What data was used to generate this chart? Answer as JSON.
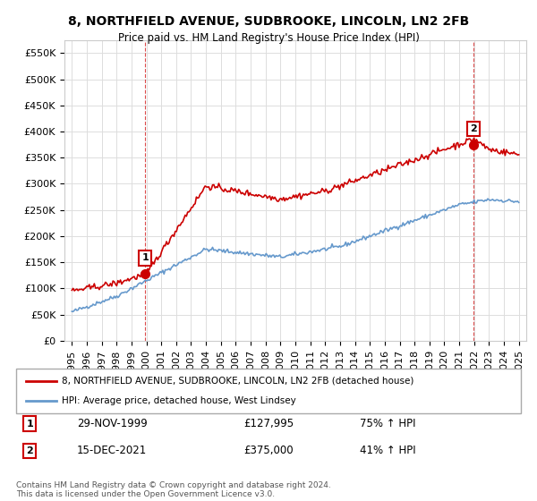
{
  "title": "8, NORTHFIELD AVENUE, SUDBROOKE, LINCOLN, LN2 2FB",
  "subtitle": "Price paid vs. HM Land Registry's House Price Index (HPI)",
  "legend_line1": "8, NORTHFIELD AVENUE, SUDBROOKE, LINCOLN, LN2 2FB (detached house)",
  "legend_line2": "HPI: Average price, detached house, West Lindsey",
  "annotation1": {
    "label": "1",
    "date": "29-NOV-1999",
    "price": "£127,995",
    "change": "75% ↑ HPI"
  },
  "annotation2": {
    "label": "2",
    "date": "15-DEC-2021",
    "price": "£375,000",
    "change": "41% ↑ HPI"
  },
  "footer": "Contains HM Land Registry data © Crown copyright and database right 2024.\nThis data is licensed under the Open Government Licence v3.0.",
  "red_color": "#cc0000",
  "blue_color": "#6699cc",
  "marker1_x": 1999.92,
  "marker1_y": 127995,
  "marker2_x": 2021.96,
  "marker2_y": 375000,
  "ylim": [
    0,
    575000
  ],
  "xlim_start": 1994.5,
  "xlim_end": 2025.5,
  "background": "#ffffff",
  "grid_color": "#dddddd"
}
